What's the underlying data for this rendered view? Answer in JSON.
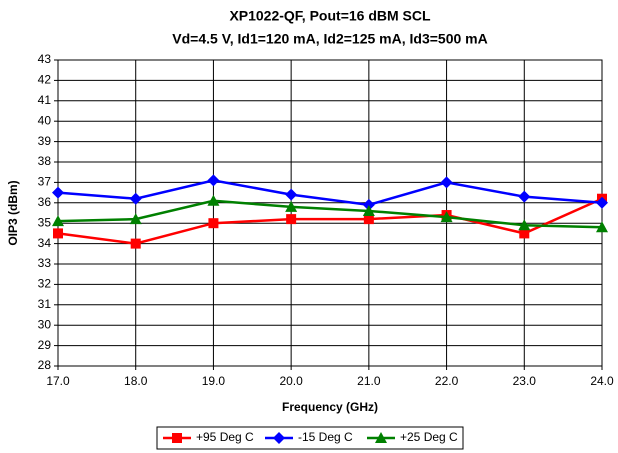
{
  "chart_data": {
    "type": "line",
    "title": "XP1022-QF, Pout=16 dBM SCL",
    "subtitle": "Vd=4.5 V, Id1=120 mA, Id2=125 mA, Id3=500 mA",
    "x_label": "Frequency (GHz)",
    "y_label": "OIP3 (dBm)",
    "x": [
      17,
      18,
      19,
      20,
      21,
      22,
      23,
      24
    ],
    "xlim": [
      17,
      24
    ],
    "xticks": [
      {
        "value": 17,
        "label": "17.0"
      },
      {
        "value": 18,
        "label": "18.0"
      },
      {
        "value": 19,
        "label": "19.0"
      },
      {
        "value": 20,
        "label": "20.0"
      },
      {
        "value": 21,
        "label": "21.0"
      },
      {
        "value": 22,
        "label": "22.0"
      },
      {
        "value": 23,
        "label": "23.0"
      },
      {
        "value": 24,
        "label": "24.0"
      }
    ],
    "ylim": [
      28,
      43
    ],
    "yticks": [
      28,
      29,
      30,
      31,
      32,
      33,
      34,
      35,
      36,
      37,
      38,
      39,
      40,
      41,
      42,
      43
    ],
    "grid": true,
    "legend": "bottom",
    "series": [
      {
        "name": "+95 Deg C",
        "color": "#ff0000",
        "marker": "square",
        "values": [
          34.5,
          34.0,
          35.0,
          35.2,
          35.2,
          35.4,
          34.5,
          36.2
        ]
      },
      {
        "name": "-15 Deg C",
        "color": "#0000ff",
        "marker": "diamond",
        "values": [
          36.5,
          36.2,
          37.1,
          36.4,
          35.9,
          37.0,
          36.3,
          36.0
        ]
      },
      {
        "name": "+25 Deg C",
        "color": "#008000",
        "marker": "triangle",
        "values": [
          35.1,
          35.2,
          36.1,
          35.8,
          35.6,
          35.3,
          34.9,
          34.8
        ]
      }
    ]
  }
}
